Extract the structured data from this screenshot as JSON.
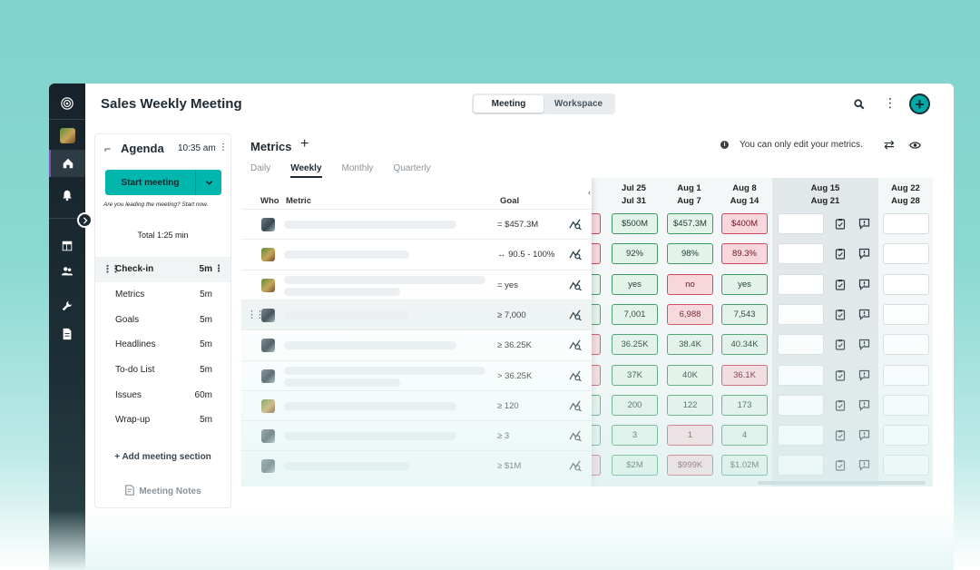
{
  "app": {
    "title": "Sales Weekly Meeting"
  },
  "header": {
    "segments": [
      {
        "label": "Meeting",
        "active": true
      },
      {
        "label": "Workspace",
        "active": false
      }
    ],
    "icons": [
      "search-icon",
      "more-vertical-icon",
      "add-circle-icon"
    ]
  },
  "rail": {
    "icons": [
      "app-logo-icon",
      "user-avatar",
      "home-icon",
      "bell-icon",
      "dashboard-icon",
      "people-icon",
      "wrench-icon",
      "document-icon"
    ]
  },
  "agenda": {
    "title": "Agenda",
    "time": "10:35 am",
    "start_label": "Start meeting",
    "hint": "Are you leading the meeting? Start now.",
    "total": "Total 1:25 min",
    "section": {
      "label": "Check-in",
      "duration": "5m"
    },
    "items": [
      {
        "label": "Metrics",
        "duration": "5m"
      },
      {
        "label": "Goals",
        "duration": "5m"
      },
      {
        "label": "Headlines",
        "duration": "5m"
      },
      {
        "label": "To-do List",
        "duration": "5m"
      },
      {
        "label": "Issues",
        "duration": "60m"
      },
      {
        "label": "Wrap-up",
        "duration": "5m"
      }
    ],
    "add_section": "+ Add meeting section",
    "notes": "Meeting Notes"
  },
  "metrics": {
    "title": "Metrics",
    "note": "You can only edit your metrics.",
    "tabs": [
      {
        "label": "Daily",
        "active": false
      },
      {
        "label": "Weekly",
        "active": true
      },
      {
        "label": "Monthly",
        "active": false
      },
      {
        "label": "Quarterly",
        "active": false
      }
    ],
    "columns": {
      "who": "Who",
      "metric": "Metric",
      "goal": "Goal"
    },
    "weeks": [
      {
        "start": "Jul 25",
        "end": "Jul 31"
      },
      {
        "start": "Aug 1",
        "end": "Aug 7"
      },
      {
        "start": "Aug 8",
        "end": "Aug 14"
      },
      {
        "start": "Aug 15",
        "end": "Aug 21",
        "current": true
      },
      {
        "start": "Aug 22",
        "end": "Aug 28"
      }
    ],
    "rows": [
      {
        "goal": "= $457.3M",
        "avatar": "man",
        "prev": "r",
        "values": [
          {
            "v": "$500M",
            "s": "g"
          },
          {
            "v": "$457.3M",
            "s": "g"
          },
          {
            "v": "$400M",
            "s": "r"
          }
        ]
      },
      {
        "goal": "↔ 90.5 - 100%",
        "avatar": "woman",
        "prev": "r",
        "values": [
          {
            "v": "92%",
            "s": "g"
          },
          {
            "v": "98%",
            "s": "g"
          },
          {
            "v": "89.3%",
            "s": "r"
          }
        ]
      },
      {
        "goal": "= yes",
        "avatar": "woman",
        "prev": "g",
        "values": [
          {
            "v": "yes",
            "s": "g"
          },
          {
            "v": "no",
            "s": "r"
          },
          {
            "v": "yes",
            "s": "g"
          }
        ]
      },
      {
        "goal": "≥ 7,000",
        "avatar": "man",
        "prev": "g",
        "values": [
          {
            "v": "7,001",
            "s": "g"
          },
          {
            "v": "6,988",
            "s": "r"
          },
          {
            "v": "7,543",
            "s": "g"
          }
        ]
      },
      {
        "goal": "≥ 36.25K",
        "avatar": "man",
        "prev": "r",
        "values": [
          {
            "v": "36.25K",
            "s": "g"
          },
          {
            "v": "38.4K",
            "s": "g"
          },
          {
            "v": "40.34K",
            "s": "g"
          }
        ]
      },
      {
        "goal": "> 36.25K",
        "avatar": "man",
        "prev": "r",
        "values": [
          {
            "v": "37K",
            "s": "g"
          },
          {
            "v": "40K",
            "s": "g"
          },
          {
            "v": "36.1K",
            "s": "r"
          }
        ]
      },
      {
        "goal": "≥ 120",
        "avatar": "woman",
        "prev": "g",
        "values": [
          {
            "v": "200",
            "s": "g"
          },
          {
            "v": "122",
            "s": "g"
          },
          {
            "v": "173",
            "s": "g"
          }
        ]
      },
      {
        "goal": "≥ 3",
        "avatar": "man",
        "prev": "g",
        "values": [
          {
            "v": "3",
            "s": "g"
          },
          {
            "v": "1",
            "s": "r"
          },
          {
            "v": "4",
            "s": "g"
          }
        ]
      },
      {
        "goal": "≥ $1M",
        "avatar": "man",
        "prev": "r",
        "values": [
          {
            "v": "$2M",
            "s": "g"
          },
          {
            "v": "$999K",
            "s": "r"
          },
          {
            "v": "$1.02M",
            "s": "g"
          }
        ]
      }
    ]
  },
  "colors": {
    "accent": "#00b6ad",
    "good": "#3c9a62",
    "bad": "#c9485c",
    "rail": "#17222a"
  }
}
